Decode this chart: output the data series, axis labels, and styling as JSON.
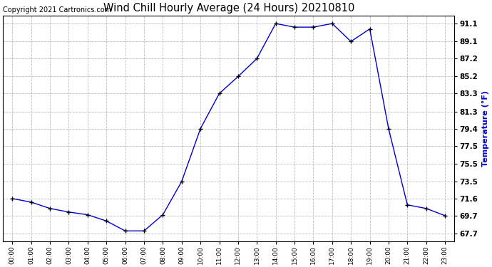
{
  "title": "Wind Chill Hourly Average (24 Hours) 20210810",
  "copyright": "Copyright 2021 Cartronics.com",
  "ylabel": "Temperature (°F)",
  "ylabel_color": "#0000cc",
  "line_color": "#0000cc",
  "marker_color": "#000000",
  "background_color": "#ffffff",
  "grid_color": "#bbbbbb",
  "hours": [
    0,
    1,
    2,
    3,
    4,
    5,
    6,
    7,
    8,
    9,
    10,
    11,
    12,
    13,
    14,
    15,
    16,
    17,
    18,
    19,
    20,
    21,
    22,
    23
  ],
  "x_labels": [
    "00:00",
    "01:00",
    "02:00",
    "03:00",
    "04:00",
    "05:00",
    "06:00",
    "07:00",
    "08:00",
    "09:00",
    "10:00",
    "11:00",
    "12:00",
    "13:00",
    "14:00",
    "15:00",
    "16:00",
    "17:00",
    "18:00",
    "19:00",
    "20:00",
    "21:00",
    "22:00",
    "23:00"
  ],
  "values": [
    71.6,
    71.2,
    70.5,
    70.1,
    69.8,
    69.1,
    68.0,
    68.0,
    69.8,
    73.5,
    79.4,
    83.3,
    85.2,
    87.2,
    91.1,
    90.7,
    90.7,
    91.1,
    89.1,
    90.5,
    79.4,
    70.9,
    70.5,
    69.7
  ],
  "yticks": [
    67.7,
    69.7,
    71.6,
    73.5,
    75.5,
    77.5,
    79.4,
    81.3,
    83.3,
    85.2,
    87.2,
    89.1,
    91.1
  ],
  "ylim": [
    66.8,
    92.0
  ],
  "xlim": [
    -0.5,
    23.5
  ],
  "title_fontsize": 10.5,
  "copyright_fontsize": 7,
  "ytick_fontsize": 7.5,
  "xtick_fontsize": 6.5,
  "ylabel_fontsize": 8
}
